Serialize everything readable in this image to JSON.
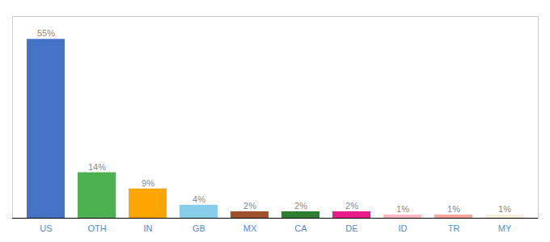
{
  "chart_data": {
    "type": "bar",
    "categories": [
      "US",
      "OTH",
      "IN",
      "GB",
      "MX",
      "CA",
      "DE",
      "ID",
      "TR",
      "MY"
    ],
    "values": [
      55,
      14,
      9,
      4,
      2,
      2,
      2,
      1,
      1,
      1
    ],
    "value_labels": [
      "55%",
      "14%",
      "9%",
      "4%",
      "2%",
      "2%",
      "2%",
      "1%",
      "1%",
      "1%"
    ],
    "colors": [
      "#4472C4",
      "#4CAF50",
      "#FFA500",
      "#87CEEB",
      "#A0522D",
      "#2E7D32",
      "#E91E8C",
      "#FFB6C1",
      "#F4A69A",
      "#F5F0DC"
    ],
    "ylim": [
      0,
      62
    ],
    "data_labels": true,
    "tick_labels": "x",
    "grid": false
  }
}
